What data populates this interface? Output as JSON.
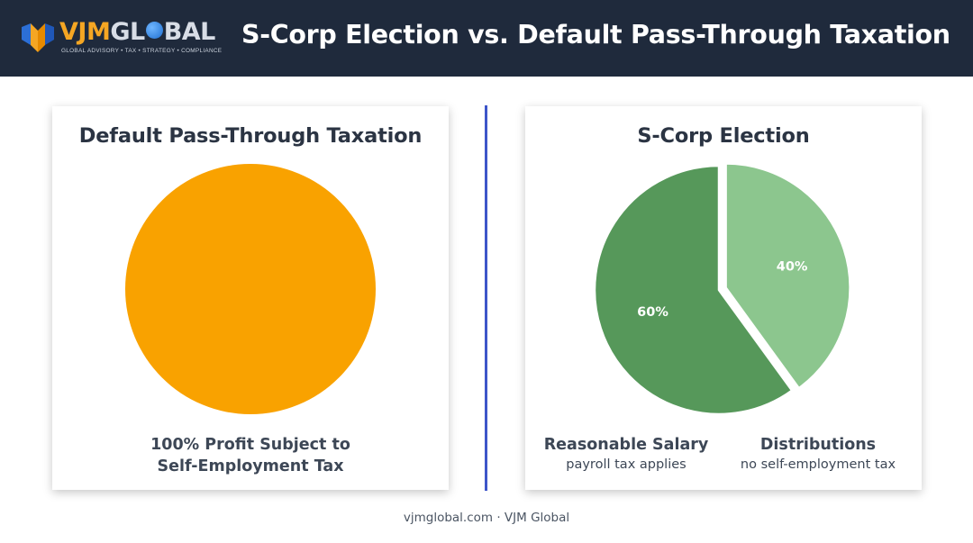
{
  "brand": {
    "name_part1": "VJM",
    "name_part2a": "GL",
    "name_part2b": "BAL",
    "tagline": "GLOBAL ADVISORY • TAX • STRATEGY • COMPLIANCE"
  },
  "header": {
    "title": "S-Corp Election vs. Default Pass-Through Taxation"
  },
  "colors": {
    "header_bg": "#1f2a3c",
    "orange": "#f9a200",
    "salary_green": "#56985a",
    "distribution_green": "#8cc68e",
    "divider_blue": "#3d55c9"
  },
  "chart_data": [
    {
      "type": "pie",
      "title": "Default Pass-Through Taxation",
      "slices": [
        {
          "label": "100% Profit Subject to Self-Employment Tax",
          "value": 100,
          "color": "#f9a200"
        }
      ],
      "caption_line1": "100% Profit Subject to",
      "caption_line2": "Self-Employment Tax"
    },
    {
      "type": "pie",
      "title": "S-Corp Election",
      "slices": [
        {
          "name": "Reasonable Salary",
          "note": "payroll tax applies",
          "value": 60,
          "value_label": "60%",
          "color": "#56985a"
        },
        {
          "name": "Distributions",
          "note": "no self-employment tax",
          "value": 40,
          "value_label": "40%",
          "color": "#8cc68e"
        }
      ]
    }
  ],
  "footer": {
    "text": "vjmglobal.com · VJM Global"
  }
}
